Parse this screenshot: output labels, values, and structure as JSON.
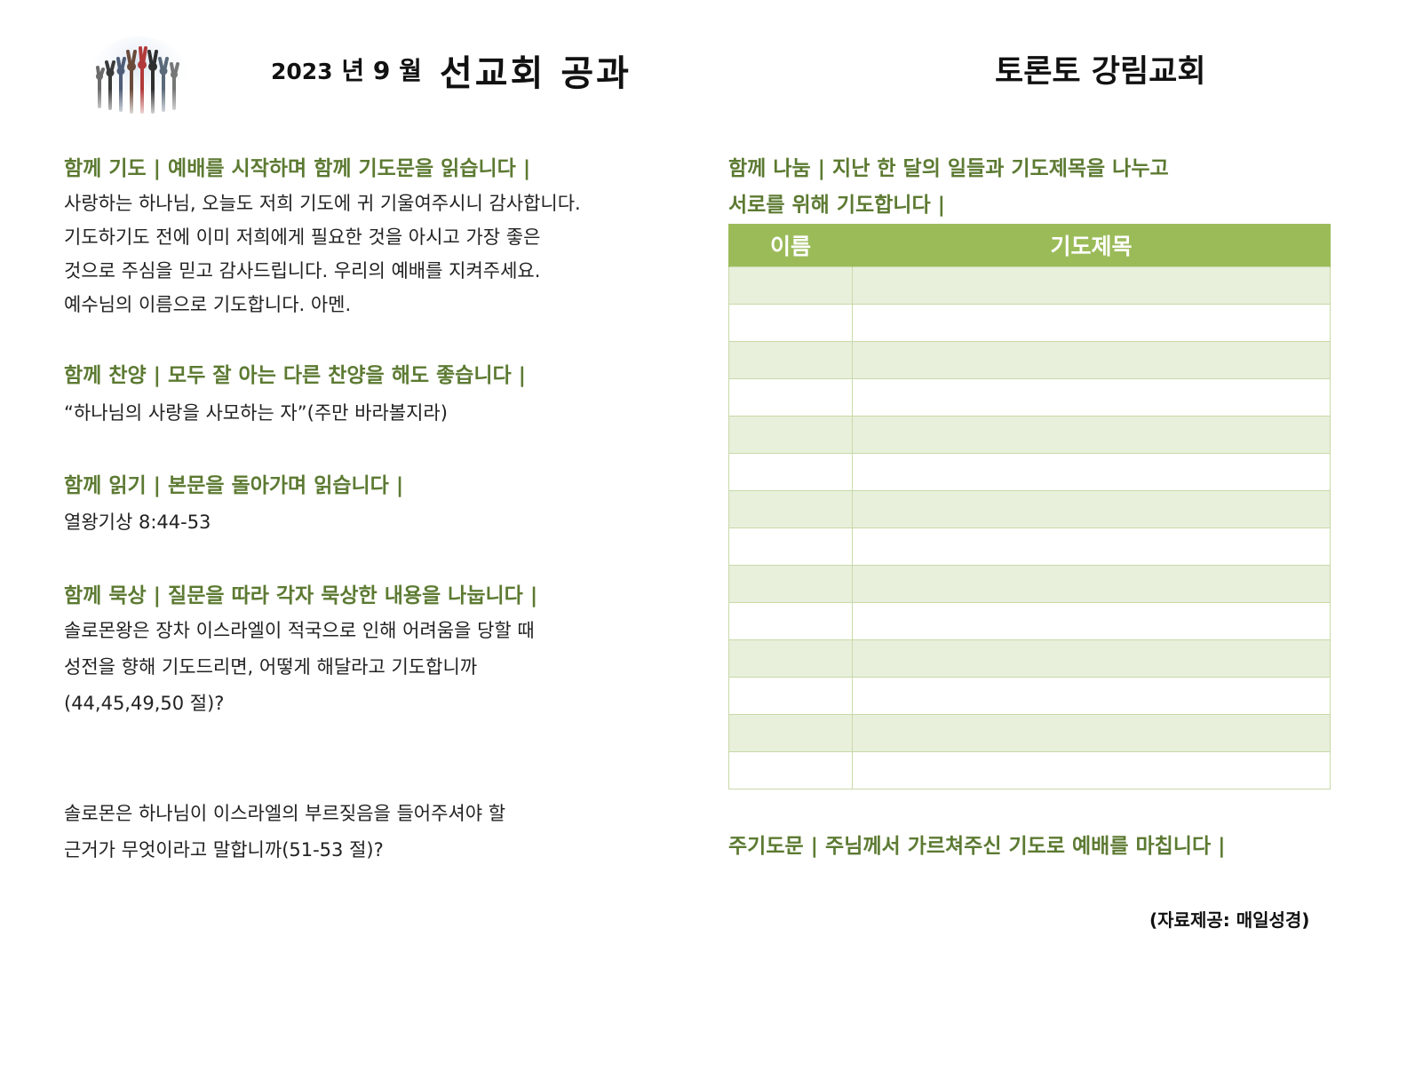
{
  "header": {
    "date_year": "2023",
    "date_rest": " 년 9 월",
    "title": "선교회 공과",
    "church": "토론토 강림교회"
  },
  "prayer": {
    "heading": "함께 기도 | 예배를 시작하며 함께 기도문을 읽습니다 |",
    "lines": [
      "사랑하는 하나님, 오늘도 저희 기도에 귀 기울여주시니 감사합니다.",
      "기도하기도 전에 이미 저희에게 필요한 것을 아시고 가장 좋은",
      "것으로 주심을 믿고 감사드립니다. 우리의 예배를 지켜주세요.",
      "예수님의 이름으로 기도합니다. 아멘."
    ]
  },
  "praise": {
    "heading": "함께 찬양 | 모두 잘 아는 다른 찬양을 해도 좋습니다 |",
    "line": "“하나님의 사랑을 사모하는 자”(주만 바라볼지라)"
  },
  "reading": {
    "heading": "함께 읽기 | 본문을 돌아가며 읽습니다 |",
    "line": "열왕기상 8:44-53"
  },
  "meditation": {
    "heading": "함께 묵상 | 질문을 따라 각자 묵상한 내용을 나눕니다 |",
    "q1": [
      "솔로몬왕은 장차 이스라엘이 적국으로 인해 어려움을 당할 때",
      "성전을 향해 기도드리면, 어떻게 해달라고 기도합니까",
      "(44,45,49,50 절)?"
    ],
    "q2": [
      "솔로몬은 하나님이 이스라엘의 부르짖음을 들어주셔야 할",
      "근거가 무엇이라고 말합니까(51-53 절)?"
    ]
  },
  "sharing": {
    "heading_line1": "함께 나눔 | 지난 한 달의 일들과 기도제목을 나누고",
    "heading_line2": "서로를 위해 기도합니다 |",
    "table": {
      "col_name": "이름",
      "col_prayer": "기도제목"
    }
  },
  "lords_prayer": {
    "heading": "주기도문 | 주님께서 가르쳐주신 기도로 예배를 마칩니다 |"
  },
  "credit": "(자료제공: 매일성경)",
  "colors": {
    "heading_green": "#5c7a32",
    "table_header": "#9bbb59",
    "table_band": "#e8f0dc"
  }
}
